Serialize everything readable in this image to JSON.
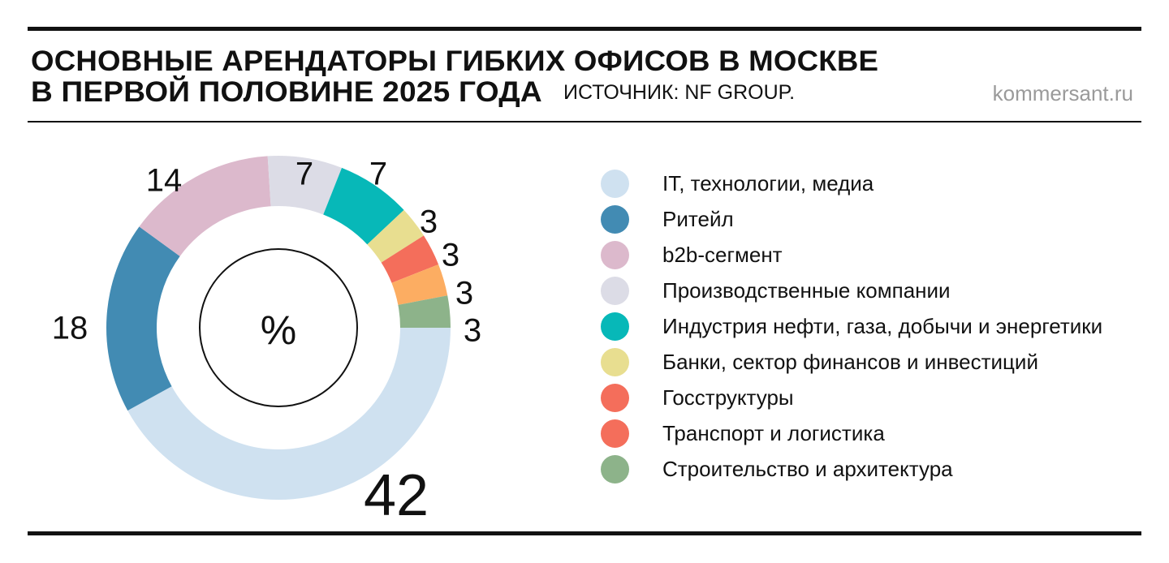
{
  "header": {
    "title_line1": "ОСНОВНЫЕ АРЕНДАТОРЫ ГИБКИХ ОФИСОВ В МОСКВЕ",
    "title_line2": "В ПЕРВОЙ ПОЛОВИНЕ 2025 ГОДА",
    "source": "ИСТОЧНИК: NF GROUP.",
    "site": "kommersant.ru"
  },
  "chart_data": {
    "type": "pie",
    "variant": "donut",
    "title": "ОСНОВНЫЕ АРЕНДАТОРЫ ГИБКИХ ОФИСОВ В МОСКВЕ В ПЕРВОЙ ПОЛОВИНЕ 2025 ГОДА",
    "unit": "%",
    "legend_position": "right",
    "series": [
      {
        "name": "IT, технологии, медиа",
        "value": 42,
        "label": "42",
        "color": "#cfe1f0"
      },
      {
        "name": "Ритейл",
        "value": 18,
        "label": "18",
        "color": "#428bb3"
      },
      {
        "name": "b2b-сегмент",
        "value": 14,
        "label": "14",
        "color": "#dcb9cc"
      },
      {
        "name": "Производственные компании",
        "value": 7,
        "label": "7",
        "color": "#dcdce6"
      },
      {
        "name": "Индустрия нефти, газа, добычи и энергетики",
        "value": 7,
        "label": "7",
        "color": "#07b8b8"
      },
      {
        "name": "Банки, сектор финансов и инвестиций",
        "value": 3,
        "label": "3",
        "color": "#e8de90"
      },
      {
        "name": "Госструктуры",
        "value": 3,
        "label": "3",
        "color": "#f46e5b"
      },
      {
        "name": "Транспорт и логистика",
        "value": 3,
        "label": "3",
        "color": "#fcad62"
      },
      {
        "name": "Строительство и архитектура",
        "value": 3,
        "label": "3",
        "color": "#8db38a"
      }
    ],
    "legend_colors": [
      "#cfe1f0",
      "#428bb3",
      "#dcb9cc",
      "#dcdce6",
      "#07b8b8",
      "#e8de90",
      "#f46e5b",
      "#f46e5b",
      "#8db38a"
    ]
  }
}
